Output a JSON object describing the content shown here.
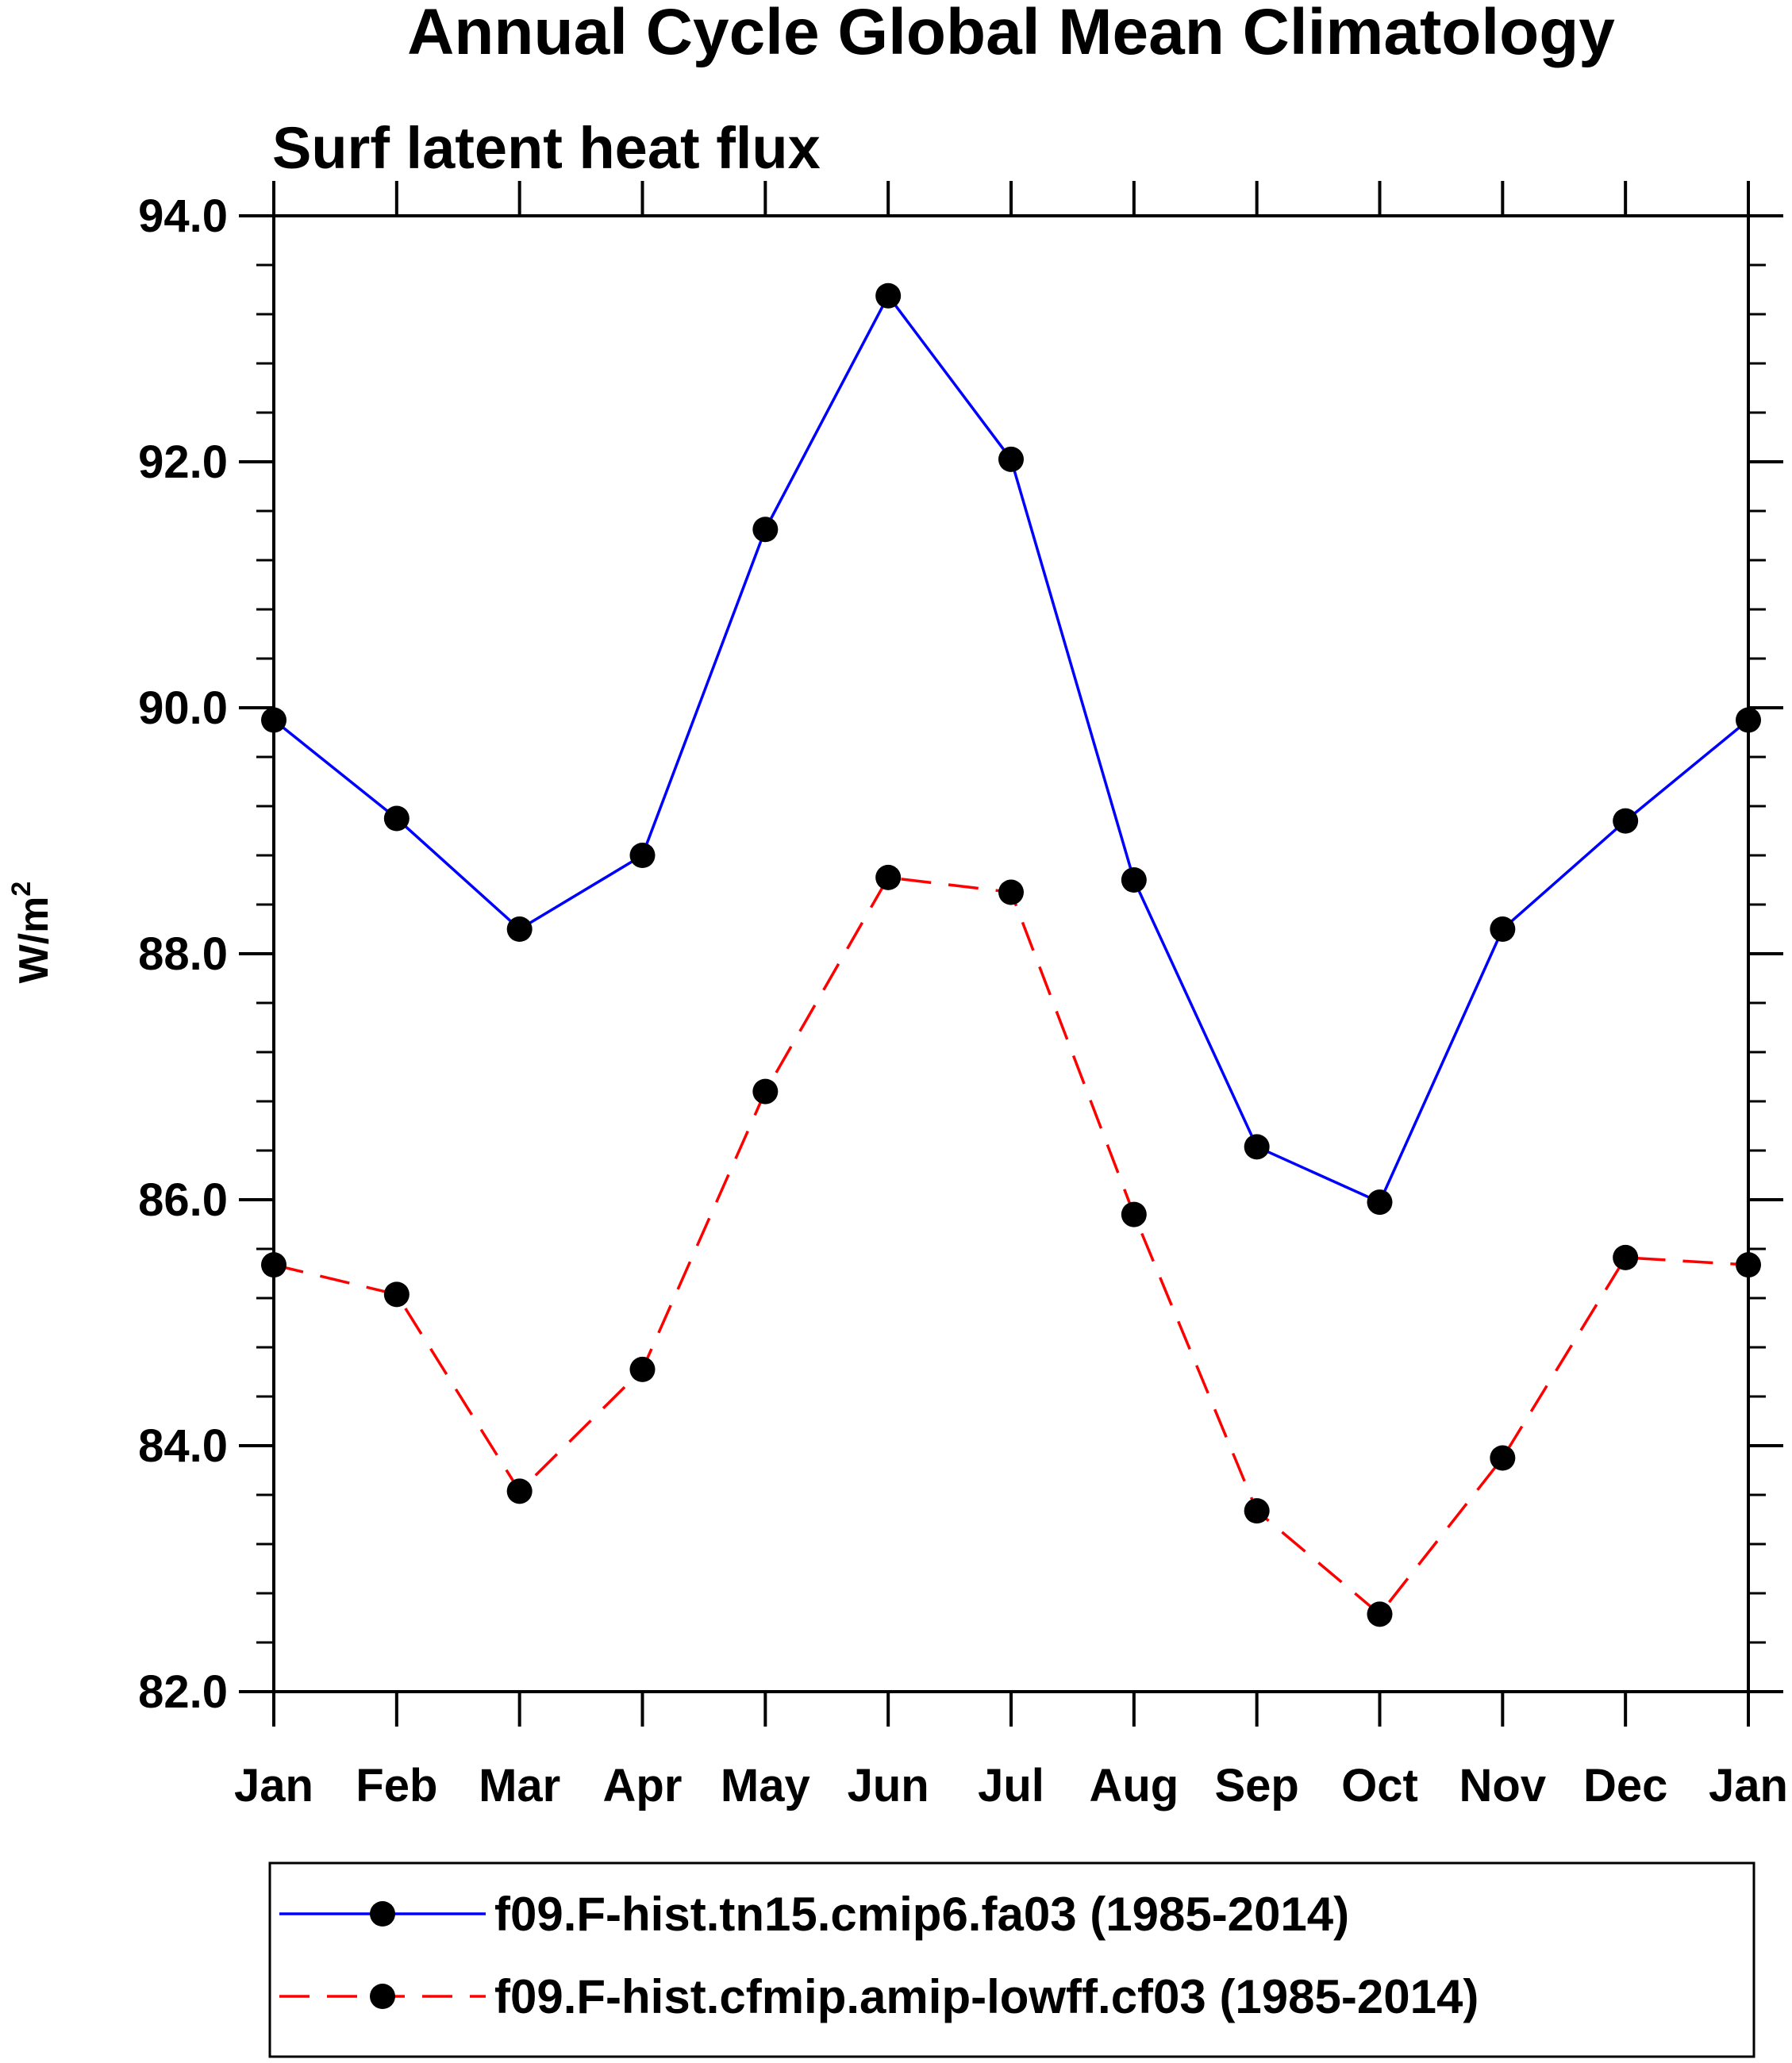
{
  "chart_data": {
    "type": "line",
    "title": "Annual Cycle Global Mean Climatology",
    "subtitle": "Surf latent heat flux",
    "ylabel": "W/m",
    "ylabel_sup": "2",
    "xlabel": "",
    "categories": [
      "Jan",
      "Feb",
      "Mar",
      "Apr",
      "May",
      "Jun",
      "Jul",
      "Aug",
      "Sep",
      "Oct",
      "Nov",
      "Dec",
      "Jan"
    ],
    "ylim": [
      82.0,
      94.0
    ],
    "yticks": [
      82.0,
      84.0,
      86.0,
      88.0,
      90.0,
      92.0,
      94.0
    ],
    "ytick_labels": [
      "82.0",
      "84.0",
      "86.0",
      "88.0",
      "90.0",
      "92.0",
      "94.0"
    ],
    "grid": false,
    "legend_position": "bottom",
    "series": [
      {
        "name": "f09.F-hist.tn15.cmip6.fa03 (1985-2014)",
        "color": "#0000ff",
        "dash": "solid",
        "values": [
          89.9,
          89.1,
          88.2,
          88.8,
          91.45,
          93.35,
          92.02,
          88.6,
          86.43,
          85.98,
          88.2,
          89.08,
          89.9
        ]
      },
      {
        "name": "f09.F-hist.cfmip.amip-lowff.cf03 (1985-2014)",
        "color": "#ff0000",
        "dash": "dashed",
        "values": [
          85.47,
          85.23,
          83.63,
          84.62,
          86.88,
          88.62,
          88.5,
          85.88,
          83.47,
          82.63,
          83.9,
          85.53,
          85.47
        ]
      }
    ]
  }
}
